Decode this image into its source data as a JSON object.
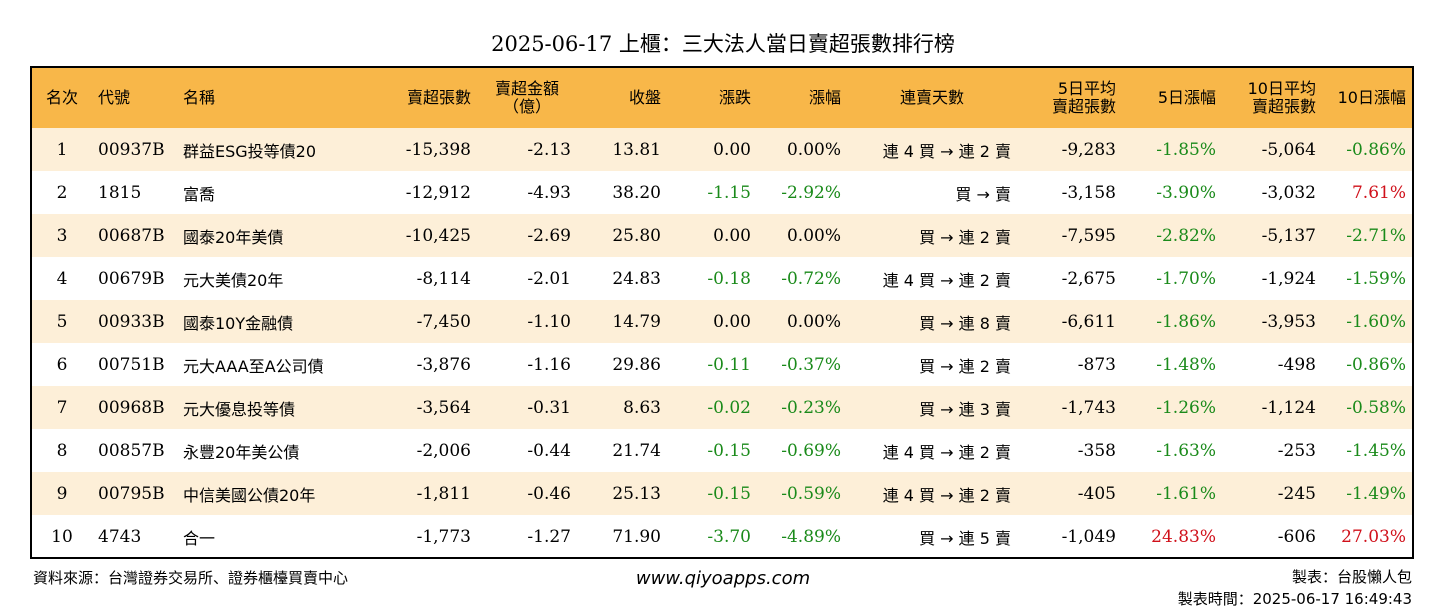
{
  "title": "2025-06-17 上櫃：三大法人當日賣超張數排行榜",
  "headers": {
    "rank": "名次",
    "code": "代號",
    "name": "名稱",
    "sell_volume": "賣超張數",
    "sell_amount_1": "賣超金額",
    "sell_amount_2": "（億）",
    "close": "收盤",
    "change": "漲跌",
    "change_pct": "漲幅",
    "streak": "連賣天數",
    "avg5_1": "5日平均",
    "avg5_2": "賣超張數",
    "pct5": "5日漲幅",
    "avg10_1": "10日平均",
    "avg10_2": "賣超張數",
    "pct10": "10日漲幅"
  },
  "rows": [
    {
      "rank": "1",
      "code": "00937B",
      "name": "群益ESG投等債20",
      "sell_volume": "-15,398",
      "sell_amount": "-2.13",
      "close": "13.81",
      "change": "0.00",
      "change_color": "neutral",
      "change_pct": "0.00%",
      "change_pct_color": "neutral",
      "streak": "連 4 買 → 連 2 賣",
      "avg5": "-9,283",
      "pct5": "-1.85%",
      "pct5_color": "green",
      "avg10": "-5,064",
      "pct10": "-0.86%",
      "pct10_color": "green"
    },
    {
      "rank": "2",
      "code": "1815",
      "name": "富喬",
      "sell_volume": "-12,912",
      "sell_amount": "-4.93",
      "close": "38.20",
      "change": "-1.15",
      "change_color": "green",
      "change_pct": "-2.92%",
      "change_pct_color": "green",
      "streak": "買 → 賣",
      "avg5": "-3,158",
      "pct5": "-3.90%",
      "pct5_color": "green",
      "avg10": "-3,032",
      "pct10": "7.61%",
      "pct10_color": "red"
    },
    {
      "rank": "3",
      "code": "00687B",
      "name": "國泰20年美債",
      "sell_volume": "-10,425",
      "sell_amount": "-2.69",
      "close": "25.80",
      "change": "0.00",
      "change_color": "neutral",
      "change_pct": "0.00%",
      "change_pct_color": "neutral",
      "streak": "買 → 連 2 賣",
      "avg5": "-7,595",
      "pct5": "-2.82%",
      "pct5_color": "green",
      "avg10": "-5,137",
      "pct10": "-2.71%",
      "pct10_color": "green"
    },
    {
      "rank": "4",
      "code": "00679B",
      "name": "元大美債20年",
      "sell_volume": "-8,114",
      "sell_amount": "-2.01",
      "close": "24.83",
      "change": "-0.18",
      "change_color": "green",
      "change_pct": "-0.72%",
      "change_pct_color": "green",
      "streak": "連 4 買 → 連 2 賣",
      "avg5": "-2,675",
      "pct5": "-1.70%",
      "pct5_color": "green",
      "avg10": "-1,924",
      "pct10": "-1.59%",
      "pct10_color": "green"
    },
    {
      "rank": "5",
      "code": "00933B",
      "name": "國泰10Y金融債",
      "sell_volume": "-7,450",
      "sell_amount": "-1.10",
      "close": "14.79",
      "change": "0.00",
      "change_color": "neutral",
      "change_pct": "0.00%",
      "change_pct_color": "neutral",
      "streak": "買 → 連 8 賣",
      "avg5": "-6,611",
      "pct5": "-1.86%",
      "pct5_color": "green",
      "avg10": "-3,953",
      "pct10": "-1.60%",
      "pct10_color": "green"
    },
    {
      "rank": "6",
      "code": "00751B",
      "name": "元大AAA至A公司債",
      "sell_volume": "-3,876",
      "sell_amount": "-1.16",
      "close": "29.86",
      "change": "-0.11",
      "change_color": "green",
      "change_pct": "-0.37%",
      "change_pct_color": "green",
      "streak": "買 → 連 2 賣",
      "avg5": "-873",
      "pct5": "-1.48%",
      "pct5_color": "green",
      "avg10": "-498",
      "pct10": "-0.86%",
      "pct10_color": "green"
    },
    {
      "rank": "7",
      "code": "00968B",
      "name": "元大優息投等債",
      "sell_volume": "-3,564",
      "sell_amount": "-0.31",
      "close": "8.63",
      "change": "-0.02",
      "change_color": "green",
      "change_pct": "-0.23%",
      "change_pct_color": "green",
      "streak": "買 → 連 3 賣",
      "avg5": "-1,743",
      "pct5": "-1.26%",
      "pct5_color": "green",
      "avg10": "-1,124",
      "pct10": "-0.58%",
      "pct10_color": "green"
    },
    {
      "rank": "8",
      "code": "00857B",
      "name": "永豐20年美公債",
      "sell_volume": "-2,006",
      "sell_amount": "-0.44",
      "close": "21.74",
      "change": "-0.15",
      "change_color": "green",
      "change_pct": "-0.69%",
      "change_pct_color": "green",
      "streak": "連 4 買 → 連 2 賣",
      "avg5": "-358",
      "pct5": "-1.63%",
      "pct5_color": "green",
      "avg10": "-253",
      "pct10": "-1.45%",
      "pct10_color": "green"
    },
    {
      "rank": "9",
      "code": "00795B",
      "name": "中信美國公債20年",
      "sell_volume": "-1,811",
      "sell_amount": "-0.46",
      "close": "25.13",
      "change": "-0.15",
      "change_color": "green",
      "change_pct": "-0.59%",
      "change_pct_color": "green",
      "streak": "連 4 買 → 連 2 賣",
      "avg5": "-405",
      "pct5": "-1.61%",
      "pct5_color": "green",
      "avg10": "-245",
      "pct10": "-1.49%",
      "pct10_color": "green"
    },
    {
      "rank": "10",
      "code": "4743",
      "name": "合一",
      "sell_volume": "-1,773",
      "sell_amount": "-1.27",
      "close": "71.90",
      "change": "-3.70",
      "change_color": "green",
      "change_pct": "-4.89%",
      "change_pct_color": "green",
      "streak": "買 → 連 5 賣",
      "avg5": "-1,049",
      "pct5": "24.83%",
      "pct5_color": "red",
      "avg10": "-606",
      "pct10": "27.03%",
      "pct10_color": "red"
    }
  ],
  "colors": {
    "header_bg": "#f8b749",
    "stripe_bg": "#fdefd8",
    "green": "#1a8a1a",
    "red": "#d0101a"
  },
  "footer": {
    "source": "資料來源：台灣證券交易所、證券櫃檯買賣中心",
    "website": "www.qiyoapps.com",
    "maker": "製表：台股懶人包",
    "made_time": "製表時間：2025-06-17 16:49:43"
  }
}
